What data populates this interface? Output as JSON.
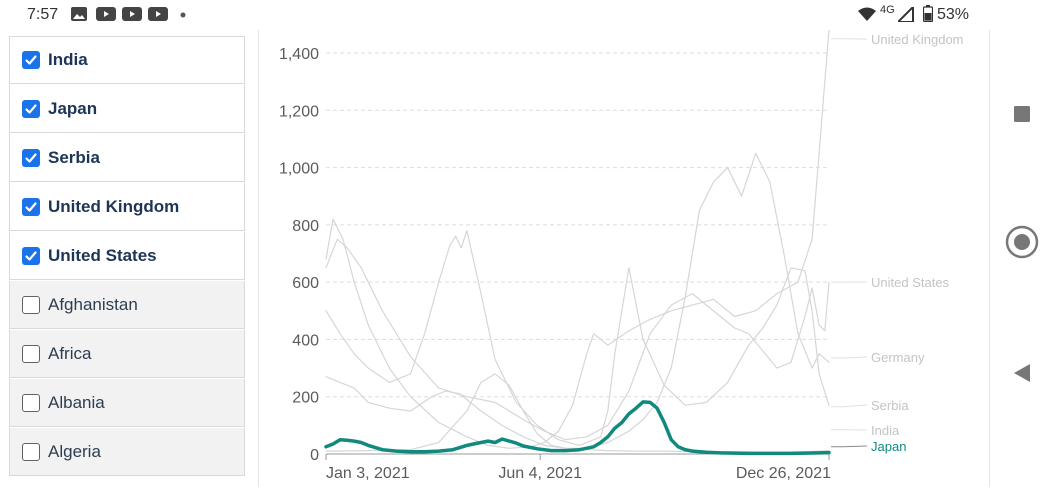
{
  "status_bar": {
    "time": "7:57",
    "network": "4G",
    "battery": "53%",
    "left_icons": [
      "image-icon",
      "youtube-icon",
      "youtube-icon",
      "youtube-icon",
      "dot-icon"
    ],
    "right_icons": [
      "wifi-icon",
      "signal-icon",
      "battery-icon"
    ]
  },
  "countries": [
    {
      "label": "India",
      "checked": true
    },
    {
      "label": "Japan",
      "checked": true
    },
    {
      "label": "Serbia",
      "checked": true
    },
    {
      "label": "United Kingdom",
      "checked": true
    },
    {
      "label": "United States",
      "checked": true
    },
    {
      "label": "Afghanistan",
      "checked": false
    },
    {
      "label": "Africa",
      "checked": false
    },
    {
      "label": "Albania",
      "checked": false
    },
    {
      "label": "Algeria",
      "checked": false
    }
  ],
  "chart_data": {
    "type": "line",
    "title": "",
    "xlabel": "",
    "ylabel": "",
    "ylim": [
      0,
      1500
    ],
    "yticks": [
      0,
      200,
      400,
      600,
      800,
      1000,
      1200,
      1400
    ],
    "ytick_labels": [
      "0",
      "200",
      "400",
      "600",
      "800",
      "1,000",
      "1,200",
      "1,400"
    ],
    "x_tick_labels": [
      "Jan 3, 2021",
      "Jun 4, 2021",
      "Dec 26, 2021"
    ],
    "x_tick_days": [
      0,
      152,
      357
    ],
    "x_range_days": [
      0,
      357
    ],
    "grid": true,
    "highlight_color": "#118a7e",
    "muted_color": "#d6d6d6",
    "series": [
      {
        "name": "United Kingdom",
        "highlight": false,
        "x": [
          0,
          5,
          12,
          20,
          30,
          45,
          60,
          80,
          100,
          115,
          130,
          145,
          155,
          165,
          175,
          185,
          190,
          200,
          215,
          230,
          245,
          260,
          275,
          290,
          305,
          320,
          335,
          345,
          350,
          354,
          357
        ],
        "values": [
          680,
          820,
          750,
          600,
          450,
          300,
          200,
          110,
          60,
          30,
          20,
          25,
          40,
          80,
          170,
          350,
          420,
          380,
          430,
          470,
          500,
          520,
          540,
          480,
          500,
          560,
          600,
          750,
          1050,
          1300,
          1480
        ]
      },
      {
        "name": "United States",
        "highlight": false,
        "x": [
          0,
          8,
          15,
          25,
          40,
          60,
          80,
          100,
          120,
          140,
          155,
          170,
          185,
          200,
          215,
          230,
          245,
          260,
          270,
          280,
          290,
          300,
          310,
          320,
          330,
          340,
          345,
          350,
          354,
          357
        ],
        "values": [
          650,
          750,
          720,
          650,
          500,
          340,
          230,
          200,
          180,
          120,
          80,
          50,
          60,
          100,
          220,
          420,
          520,
          560,
          520,
          480,
          440,
          420,
          360,
          300,
          320,
          480,
          580,
          450,
          430,
          600
        ]
      },
      {
        "name": "Germany",
        "highlight": false,
        "x": [
          0,
          10,
          20,
          30,
          45,
          60,
          75,
          85,
          95,
          110,
          125,
          140,
          155,
          170,
          185,
          200,
          215,
          225,
          235,
          245,
          255,
          265,
          275,
          285,
          295,
          305,
          315,
          325,
          335,
          345,
          350,
          357
        ],
        "values": [
          270,
          250,
          230,
          180,
          160,
          150,
          200,
          220,
          210,
          150,
          100,
          60,
          30,
          20,
          20,
          40,
          80,
          120,
          180,
          300,
          550,
          850,
          950,
          1000,
          900,
          1050,
          950,
          700,
          420,
          300,
          350,
          320
        ]
      },
      {
        "name": "Serbia",
        "highlight": false,
        "x": [
          0,
          10,
          20,
          30,
          45,
          60,
          70,
          80,
          88,
          92,
          96,
          100,
          110,
          120,
          135,
          150,
          165,
          180,
          195,
          200,
          205,
          215,
          225,
          240,
          255,
          270,
          285,
          300,
          310,
          320,
          330,
          340,
          345,
          350,
          357
        ],
        "values": [
          500,
          420,
          350,
          300,
          250,
          280,
          420,
          600,
          730,
          760,
          720,
          780,
          560,
          330,
          180,
          100,
          50,
          30,
          60,
          150,
          350,
          650,
          400,
          240,
          170,
          180,
          250,
          380,
          440,
          520,
          650,
          640,
          500,
          280,
          170
        ]
      },
      {
        "name": "India",
        "highlight": false,
        "x": [
          0,
          30,
          60,
          80,
          100,
          110,
          120,
          130,
          140,
          150,
          160,
          170,
          185,
          200,
          220,
          240,
          260,
          280,
          300,
          320,
          340,
          357
        ],
        "values": [
          10,
          12,
          15,
          40,
          150,
          250,
          280,
          240,
          150,
          70,
          30,
          20,
          15,
          12,
          10,
          10,
          8,
          8,
          7,
          6,
          8,
          12
        ]
      },
      {
        "name": "Japan",
        "highlight": true,
        "x": [
          0,
          5,
          10,
          15,
          20,
          25,
          30,
          40,
          50,
          60,
          70,
          80,
          90,
          100,
          110,
          115,
          120,
          125,
          130,
          135,
          140,
          150,
          160,
          170,
          180,
          190,
          195,
          200,
          205,
          210,
          215,
          220,
          225,
          230,
          235,
          240,
          245,
          250,
          255,
          260,
          270,
          280,
          290,
          300,
          310,
          320,
          330,
          340,
          350,
          357
        ],
        "values": [
          25,
          35,
          50,
          48,
          45,
          40,
          30,
          15,
          10,
          8,
          8,
          10,
          15,
          30,
          40,
          45,
          40,
          52,
          45,
          38,
          28,
          18,
          12,
          12,
          15,
          25,
          40,
          60,
          90,
          110,
          140,
          160,
          182,
          180,
          160,
          110,
          50,
          25,
          15,
          10,
          6,
          4,
          3,
          2,
          2,
          2,
          2,
          3,
          4,
          5
        ]
      }
    ],
    "end_labels": [
      {
        "name": "United Kingdom",
        "value": 1450
      },
      {
        "name": "United States",
        "value": 600
      },
      {
        "name": "Germany",
        "value": 335
      },
      {
        "name": "Serbia",
        "value": 165
      },
      {
        "name": "India",
        "value": 85
      },
      {
        "name": "Japan",
        "value": 25
      }
    ]
  }
}
